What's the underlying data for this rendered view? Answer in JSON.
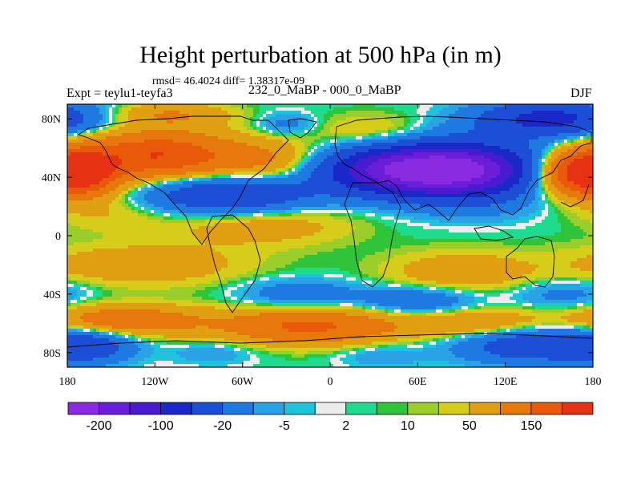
{
  "chart_data": {
    "type": "heatmap",
    "title": "Height perturbation at 500 hPa (in m)",
    "stats": "rmsd= 46.4024 diff= 1.38317e-09",
    "subtitle_left": "Expt = teylu1-teyfa3",
    "subtitle_center": "232_0_MaBP - 000_0_MaBP",
    "subtitle_right": "DJF",
    "x_range": [
      -180,
      180
    ],
    "y_range": [
      -90,
      90
    ],
    "x_ticks": [
      {
        "value": -180,
        "label": "180"
      },
      {
        "value": -120,
        "label": "120W"
      },
      {
        "value": -60,
        "label": "60W"
      },
      {
        "value": 0,
        "label": "0"
      },
      {
        "value": 60,
        "label": "60E"
      },
      {
        "value": 120,
        "label": "120E"
      },
      {
        "value": 180,
        "label": "180"
      }
    ],
    "y_ticks": [
      {
        "value": 80,
        "label": "80N"
      },
      {
        "value": 40,
        "label": "40N"
      },
      {
        "value": 0,
        "label": "0"
      },
      {
        "value": -40,
        "label": "40S"
      },
      {
        "value": -80,
        "label": "80S"
      }
    ],
    "colorbar": {
      "colors": [
        "#8a2be2",
        "#6a1ed8",
        "#4a1ad0",
        "#1a28c8",
        "#1d4fd6",
        "#1e7ae0",
        "#29a3e6",
        "#1fc4dc",
        "#ececec",
        "#1edb8e",
        "#30c43a",
        "#9ace2a",
        "#d6cc1a",
        "#e0a012",
        "#e6780c",
        "#e85a0a",
        "#e63212"
      ],
      "labels": [
        {
          "boundary": 1,
          "text": "-200"
        },
        {
          "boundary": 3,
          "text": "-100"
        },
        {
          "boundary": 5,
          "text": "-20"
        },
        {
          "boundary": 7,
          "text": "-5"
        },
        {
          "boundary": 9,
          "text": "2"
        },
        {
          "boundary": 11,
          "text": "10"
        },
        {
          "boundary": 13,
          "text": "50"
        },
        {
          "boundary": 15,
          "text": "150"
        }
      ]
    },
    "anomaly_centers": [
      {
        "lon": 88,
        "lat": 45,
        "value": -240,
        "rlon": 55,
        "rlat": 18
      },
      {
        "lon": 40,
        "lat": 45,
        "value": -150,
        "rlon": 55,
        "rlat": 16
      },
      {
        "lon": -70,
        "lat": 28,
        "value": -110,
        "rlon": 55,
        "rlat": 14
      },
      {
        "lon": -118,
        "lat": 55,
        "value": 150,
        "rlon": 50,
        "rlat": 16
      },
      {
        "lon": 170,
        "lat": 43,
        "value": 160,
        "rlon": 30,
        "rlat": 15
      },
      {
        "lon": -170,
        "lat": 43,
        "value": 140,
        "rlon": 25,
        "rlat": 15
      },
      {
        "lon": -40,
        "lat": 50,
        "value": 60,
        "rlon": 40,
        "rlat": 15
      },
      {
        "lon": 150,
        "lat": 80,
        "value": -120,
        "rlon": 50,
        "rlat": 12
      },
      {
        "lon": -110,
        "lat": 83,
        "value": 50,
        "rlon": 40,
        "rlat": 8
      },
      {
        "lon": -30,
        "lat": 76,
        "value": -30,
        "rlon": 20,
        "rlat": 8
      },
      {
        "lon": 30,
        "lat": 70,
        "value": 30,
        "rlon": 40,
        "rlat": 12
      },
      {
        "lon": -50,
        "lat": 8,
        "value": 40,
        "rlon": 60,
        "rlat": 14
      },
      {
        "lon": -150,
        "lat": 15,
        "value": 20,
        "rlon": 40,
        "rlat": 12
      },
      {
        "lon": 100,
        "lat": 20,
        "value": -15,
        "rlon": 40,
        "rlat": 12
      },
      {
        "lon": -130,
        "lat": -20,
        "value": 40,
        "rlon": 70,
        "rlat": 14
      },
      {
        "lon": 90,
        "lat": -25,
        "value": 40,
        "rlon": 50,
        "rlat": 14
      },
      {
        "lon": -20,
        "lat": -40,
        "value": -40,
        "rlon": 40,
        "rlat": 10
      },
      {
        "lon": 60,
        "lat": -45,
        "value": -50,
        "rlon": 40,
        "rlat": 10
      },
      {
        "lon": 160,
        "lat": -40,
        "value": -30,
        "rlon": 35,
        "rlat": 10
      },
      {
        "lon": -140,
        "lat": -58,
        "value": 90,
        "rlon": 50,
        "rlat": 10
      },
      {
        "lon": -15,
        "lat": -62,
        "value": 110,
        "rlon": 60,
        "rlat": 12
      },
      {
        "lon": 100,
        "lat": -60,
        "value": 50,
        "rlon": 50,
        "rlat": 10
      },
      {
        "lon": 140,
        "lat": -75,
        "value": -90,
        "rlon": 50,
        "rlat": 12
      },
      {
        "lon": -165,
        "lat": -75,
        "value": -70,
        "rlon": 30,
        "rlat": 12
      },
      {
        "lon": -80,
        "lat": -80,
        "value": -20,
        "rlon": 30,
        "rlat": 8
      },
      {
        "lon": 35,
        "lat": -82,
        "value": -20,
        "rlon": 30,
        "rlat": 8
      }
    ]
  }
}
